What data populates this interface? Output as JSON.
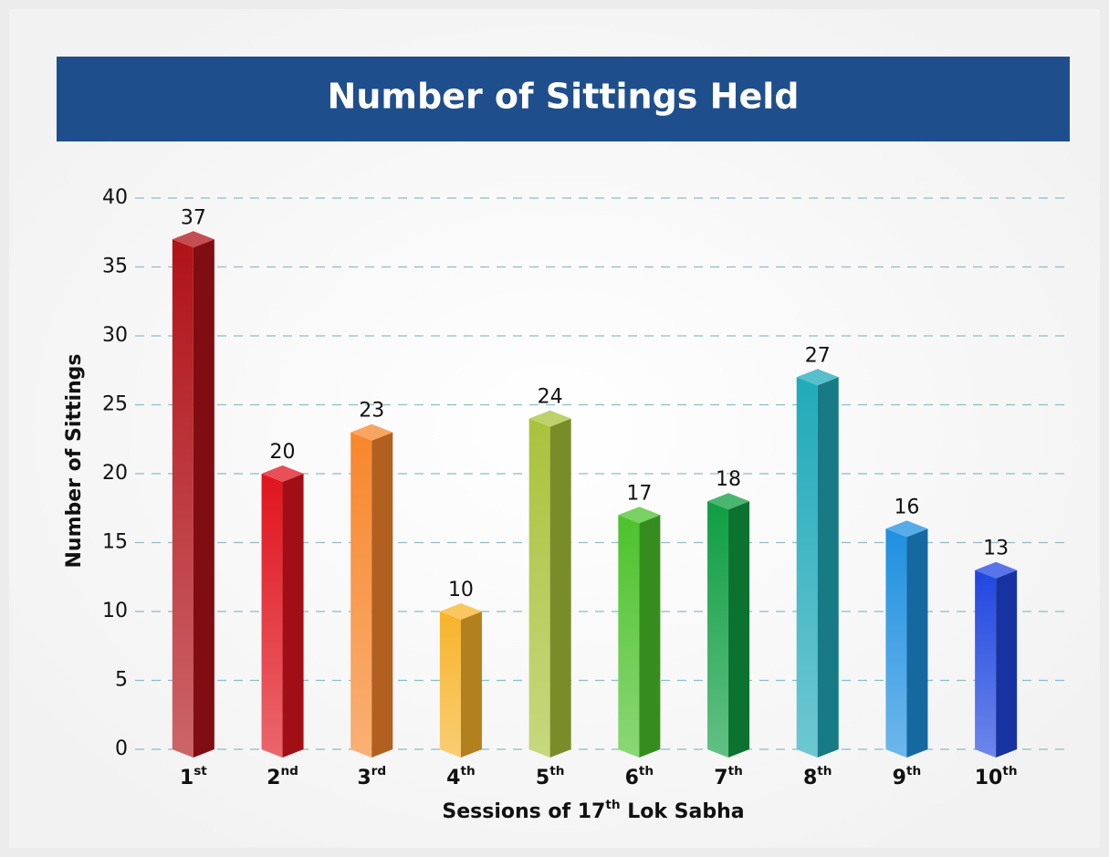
{
  "chart_data": {
    "type": "bar",
    "title": "Number of Sittings Held",
    "categories": [
      "1st",
      "2nd",
      "3rd",
      "4th",
      "5th",
      "6th",
      "7th",
      "8th",
      "9th",
      "10th"
    ],
    "values": [
      37,
      20,
      23,
      10,
      24,
      17,
      18,
      27,
      16,
      13
    ],
    "colors": [
      "#b01218",
      "#e0141e",
      "#f7862c",
      "#f7b32a",
      "#a9c23b",
      "#4dc22c",
      "#0f9e42",
      "#20aab9",
      "#1f90e0",
      "#2046e0"
    ],
    "x_label": "Sessions of 17th Lok Sabha",
    "y_label": "Number of Sittings",
    "ylim": [
      0,
      40
    ],
    "yticks": [
      0,
      5,
      10,
      15,
      20,
      25,
      30,
      35,
      40
    ],
    "grid": true
  }
}
